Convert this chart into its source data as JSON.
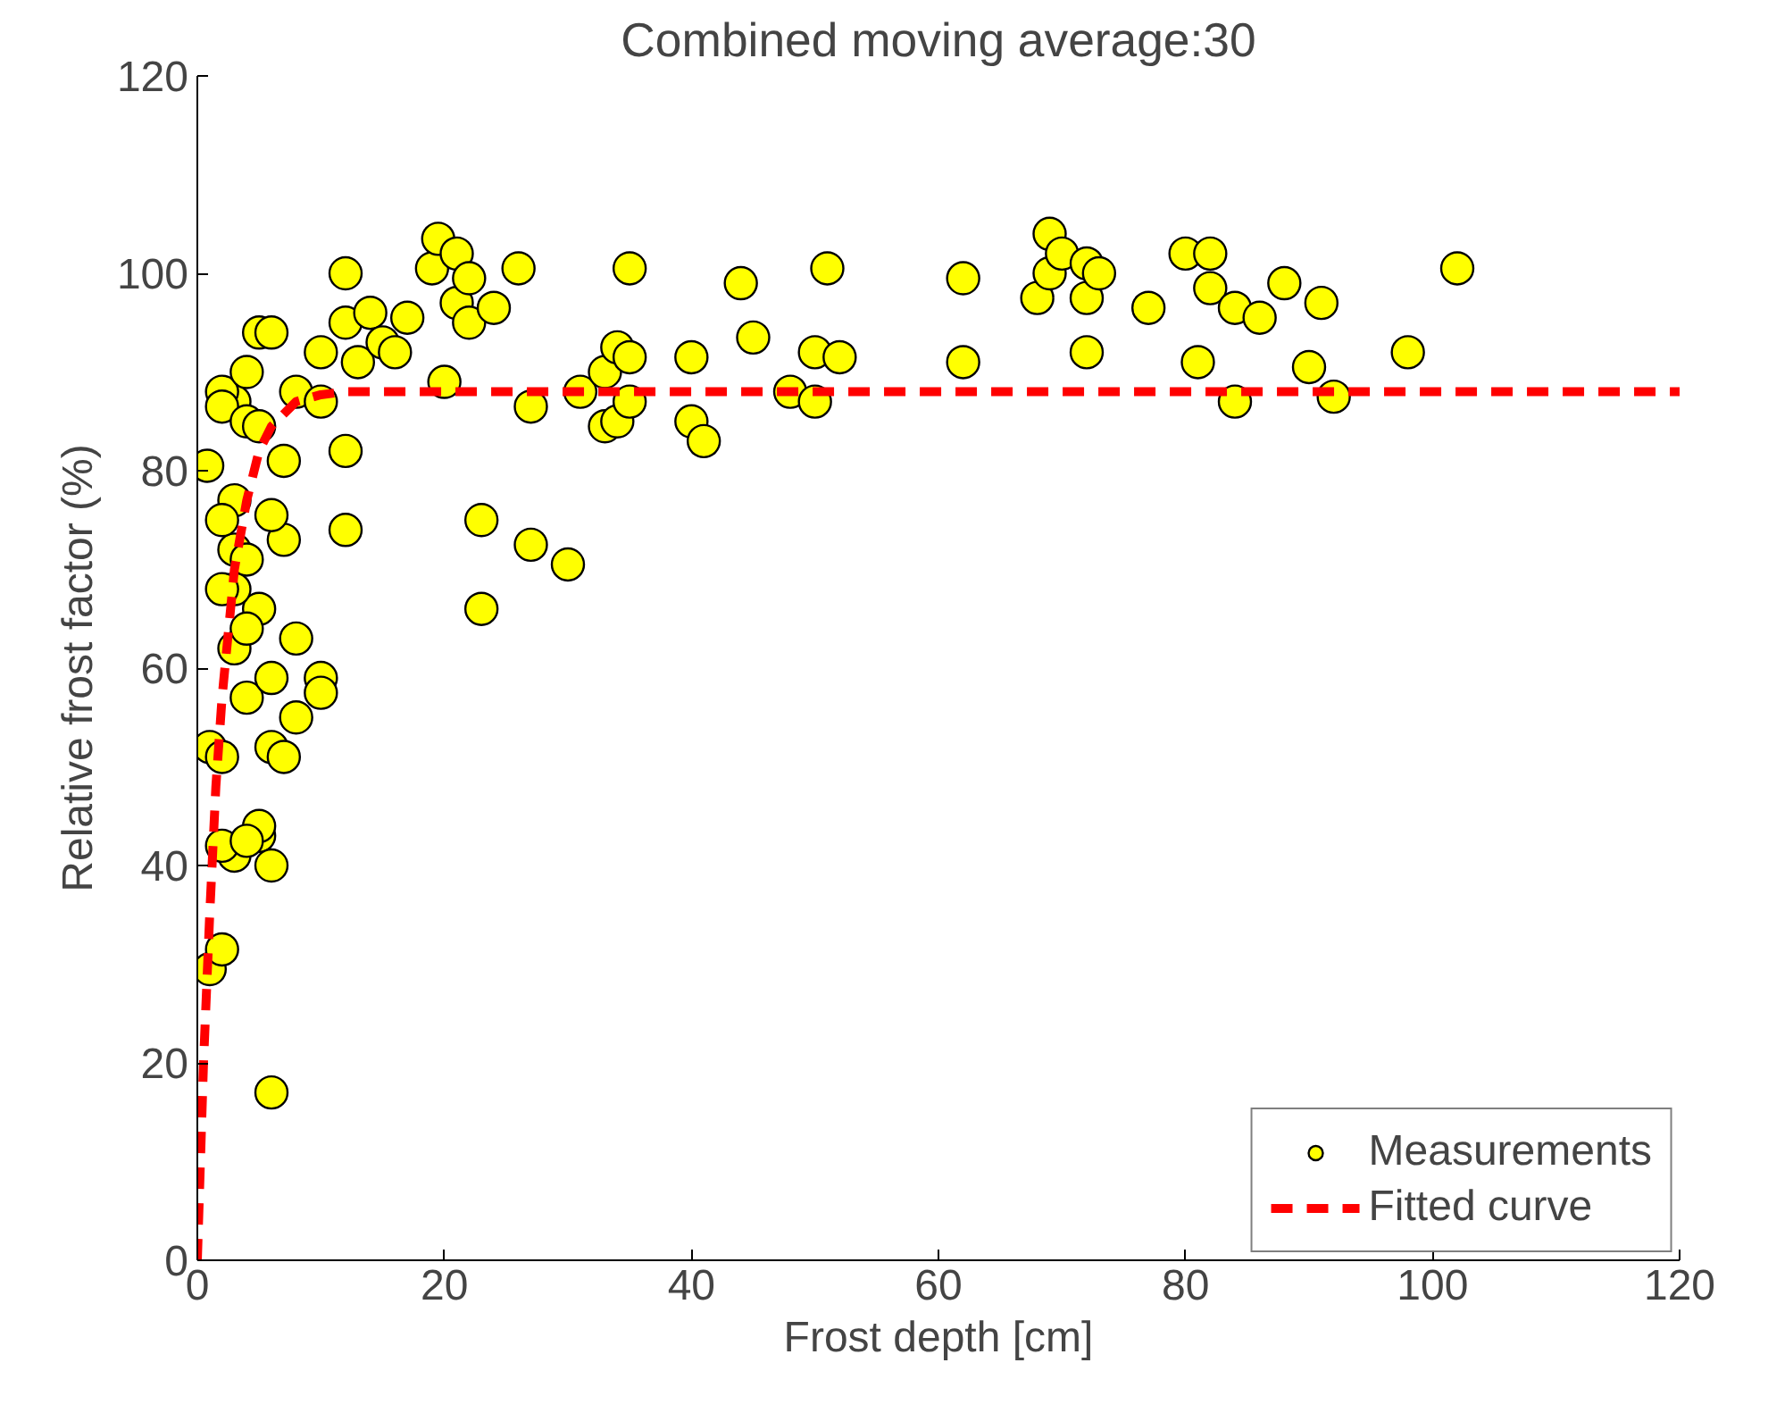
{
  "chart_data": {
    "type": "scatter",
    "title": "Combined moving average:30",
    "xlabel": "Frost depth [cm]",
    "ylabel": "Relative frost factor (%)",
    "xlim": [
      0,
      120
    ],
    "ylim": [
      0,
      120
    ],
    "xticks": [
      0,
      20,
      40,
      60,
      80,
      100,
      120
    ],
    "yticks": [
      0,
      20,
      40,
      60,
      80,
      100,
      120
    ],
    "grid": false,
    "legend": "bottom right",
    "series": [
      {
        "name": "Measurements",
        "marker": "circle",
        "color": "#ffff00",
        "x": [
          1,
          2,
          0.8,
          1,
          2,
          3,
          2,
          5,
          5,
          4,
          6,
          6,
          4,
          5,
          6,
          6,
          7,
          8,
          8,
          7,
          6,
          3,
          3,
          4,
          3,
          2,
          3,
          4,
          2,
          3,
          2,
          2,
          4,
          5,
          4,
          5,
          6,
          7,
          8,
          10,
          10,
          10,
          10,
          12,
          12,
          12,
          12,
          13,
          14,
          15,
          16,
          17,
          19,
          19.5,
          20,
          21,
          21,
          22,
          22,
          24,
          26,
          27,
          23,
          23,
          27,
          30,
          31,
          33,
          33,
          34,
          34,
          35,
          35,
          35,
          40,
          40,
          41,
          44,
          45,
          48,
          50,
          50,
          51,
          52,
          62,
          62,
          68,
          69,
          69,
          70,
          72,
          72,
          72,
          73,
          77,
          80,
          81,
          82,
          82,
          84,
          84,
          86,
          88,
          90,
          91,
          92,
          98,
          102
        ],
        "values": [
          29.5,
          31.5,
          80.5,
          52,
          51,
          41,
          42,
          43,
          44,
          42.5,
          40,
          17,
          57,
          66,
          59,
          52,
          51,
          55,
          63,
          73,
          75.5,
          77,
          72,
          71,
          68,
          68,
          62,
          64,
          75,
          87,
          88,
          86.5,
          85,
          84.5,
          90,
          94,
          94,
          81,
          88,
          87,
          92,
          59,
          57.5,
          100,
          95,
          82,
          74,
          91,
          96,
          93,
          92,
          95.5,
          100.5,
          103.5,
          89,
          102,
          97,
          99.5,
          95,
          96.5,
          100.5,
          86.5,
          75,
          66,
          72.5,
          70.5,
          88,
          84.5,
          90,
          92.5,
          85,
          87,
          100.5,
          91.5,
          91.5,
          85,
          83,
          99,
          93.5,
          88,
          92,
          87,
          100.5,
          91.5,
          99.5,
          91,
          97.5,
          104,
          100,
          102,
          101,
          97.5,
          92,
          100,
          96.5,
          102,
          91,
          102,
          98.5,
          96.5,
          87,
          95.5,
          99,
          90.5,
          97,
          87.5,
          92,
          100.5
        ]
      },
      {
        "name": "Fitted curve",
        "type": "line",
        "line_style": "dashed",
        "color": "#ff0000",
        "x": [
          0,
          0.5,
          1,
          1.5,
          2,
          3,
          4,
          5,
          6,
          8,
          10,
          12,
          20,
          120
        ],
        "values": [
          0,
          20,
          35,
          48,
          57,
          70,
          77,
          82,
          84.5,
          87,
          87.7,
          88,
          88,
          88
        ]
      }
    ]
  }
}
